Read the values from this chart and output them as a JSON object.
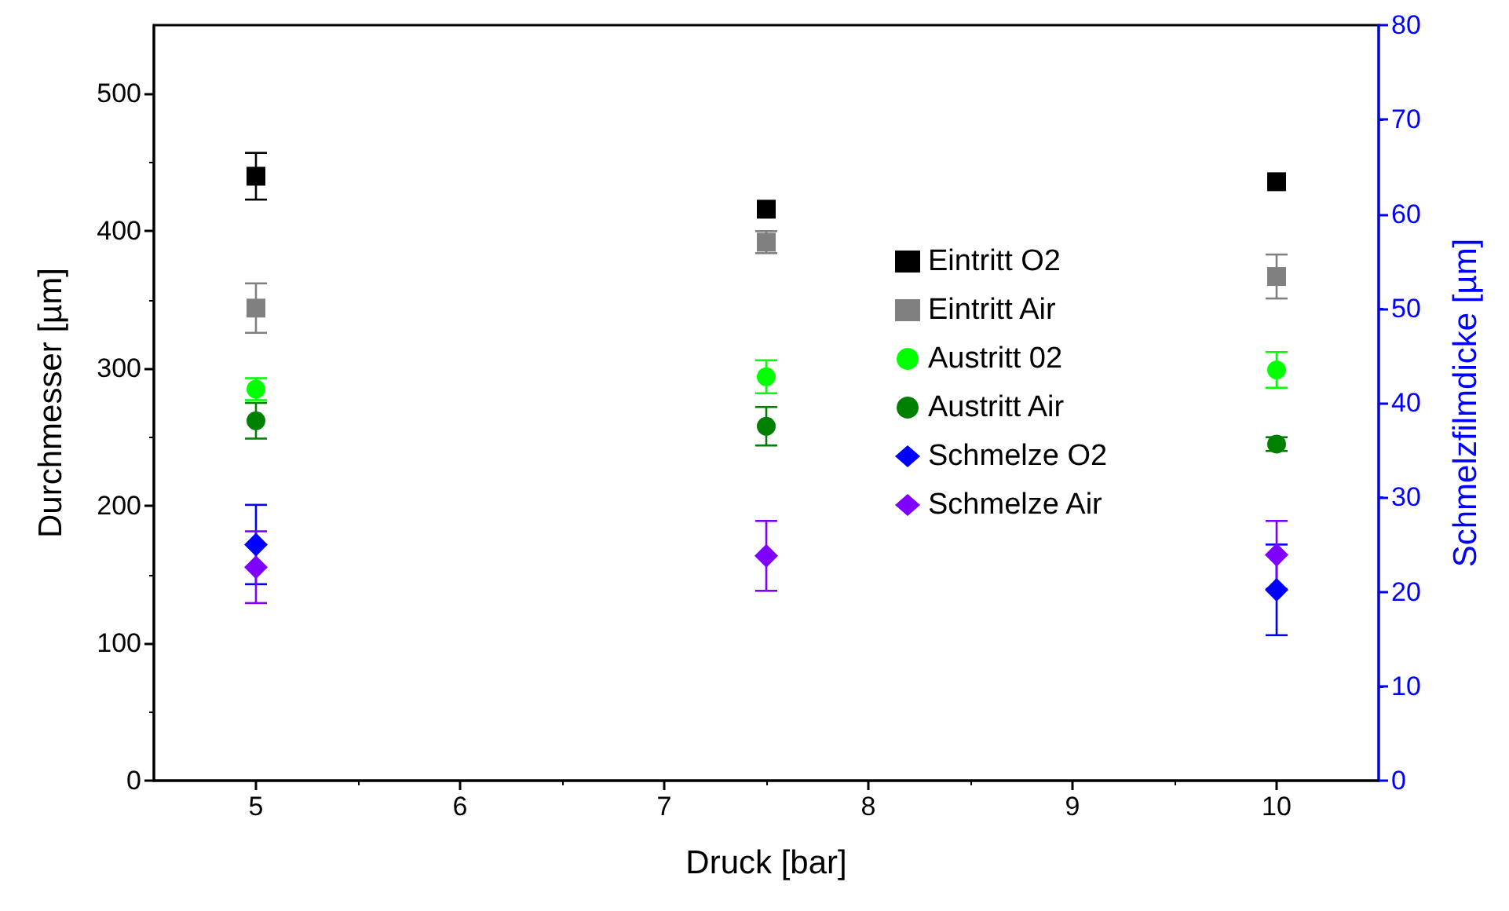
{
  "chart_data": {
    "type": "scatter",
    "xlabel": "Druck [bar]",
    "ylabel": "Durchmesser [µm]",
    "y2label": "Schmelzfilmdicke [µm]",
    "x": [
      5,
      7.5,
      10
    ],
    "xlim": [
      4.5,
      10.5
    ],
    "xticks": [
      5,
      6,
      7,
      8,
      9,
      10
    ],
    "ylim": [
      0,
      550
    ],
    "yticks": [
      0,
      100,
      200,
      300,
      400,
      500
    ],
    "y2lim": [
      0,
      80
    ],
    "y2ticks": [
      0,
      10,
      20,
      30,
      40,
      50,
      60,
      70,
      80
    ],
    "grid": false,
    "legend": "right",
    "series": [
      {
        "name": "Eintritt O2",
        "color": "#000000",
        "marker": "square",
        "values": [
          440,
          416,
          436
        ],
        "errors": [
          17,
          null,
          null
        ]
      },
      {
        "name": "Eintritt Air",
        "color": "#808080",
        "marker": "square",
        "values": [
          344,
          392,
          367
        ],
        "errors": [
          18,
          8,
          16
        ]
      },
      {
        "name": "Austritt 02",
        "color": "#00ff00",
        "marker": "circle",
        "values": [
          285,
          294,
          299
        ],
        "errors": [
          8,
          12,
          13
        ]
      },
      {
        "name": "Austritt Air",
        "color": "#008000",
        "marker": "circle",
        "values": [
          262,
          258,
          245
        ],
        "errors": [
          13,
          14,
          5
        ]
      },
      {
        "name": "Schmelze O2",
        "color": "#0000ff",
        "marker": "diamond",
        "axis": "y2",
        "values": [
          25.0,
          null,
          20.2
        ],
        "errors": [
          4.2,
          null,
          4.8
        ]
      },
      {
        "name": "Schmelze Air",
        "color": "#8000ff",
        "marker": "diamond",
        "axis": "y2",
        "values": [
          22.6,
          23.8,
          23.9
        ],
        "errors": [
          3.8,
          3.7,
          3.6
        ]
      }
    ]
  }
}
